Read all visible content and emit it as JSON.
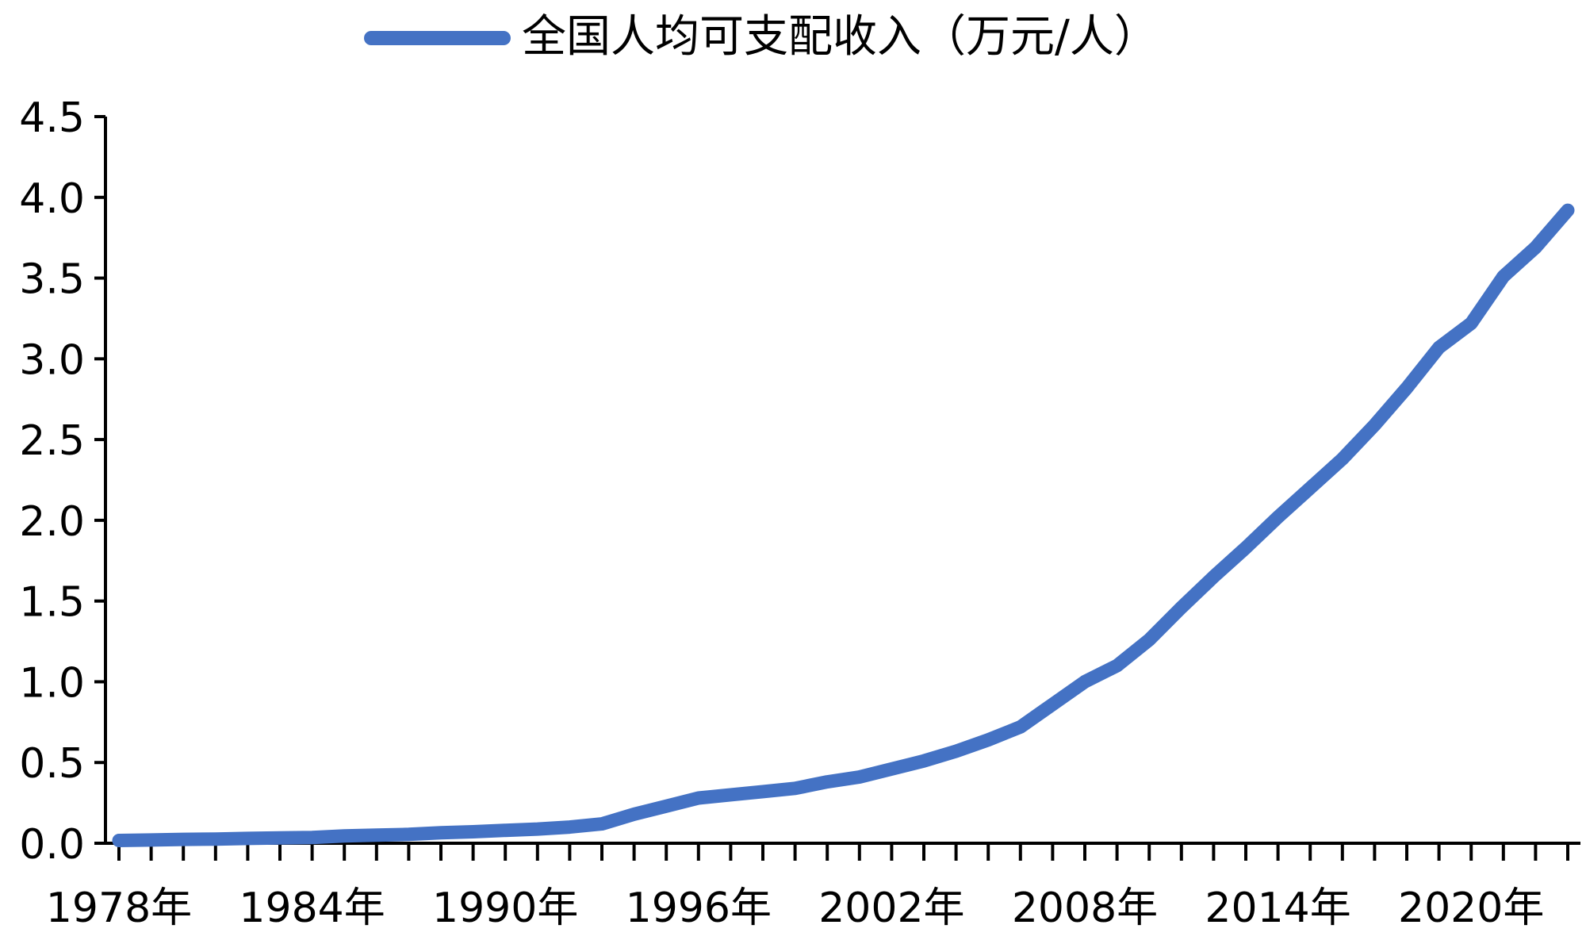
{
  "colors": {
    "series": "#4472C4",
    "axis": "#000000"
  },
  "chart_data": {
    "type": "line",
    "title": "",
    "xlabel": "",
    "ylabel": "",
    "legend_position": "top-center",
    "grid": false,
    "ylim": [
      0,
      4.5
    ],
    "yticks": [
      "0.0",
      "0.5",
      "1.0",
      "1.5",
      "2.0",
      "2.5",
      "3.0",
      "3.5",
      "4.0",
      "4.5"
    ],
    "xlim": [
      1978,
      2023
    ],
    "x_tick_labels": [
      {
        "year": 1978,
        "label": "1978年"
      },
      {
        "year": 1984,
        "label": "1984年"
      },
      {
        "year": 1990,
        "label": "1990年"
      },
      {
        "year": 1996,
        "label": "1996年"
      },
      {
        "year": 2002,
        "label": "2002年"
      },
      {
        "year": 2008,
        "label": "2008年"
      },
      {
        "year": 2014,
        "label": "2014年"
      },
      {
        "year": 2020,
        "label": "2020年"
      }
    ],
    "x": [
      1978,
      1979,
      1980,
      1981,
      1982,
      1983,
      1984,
      1985,
      1986,
      1987,
      1988,
      1989,
      1990,
      1991,
      1992,
      1993,
      1994,
      1995,
      1996,
      1997,
      1998,
      1999,
      2000,
      2001,
      2002,
      2003,
      2004,
      2005,
      2006,
      2007,
      2008,
      2009,
      2010,
      2011,
      2012,
      2013,
      2014,
      2015,
      2016,
      2017,
      2018,
      2019,
      2020,
      2021,
      2022,
      2023
    ],
    "series": [
      {
        "name": "全国人均可支配收入（万元/人）",
        "values": [
          0.017,
          0.02,
          0.024,
          0.026,
          0.03,
          0.033,
          0.036,
          0.045,
          0.05,
          0.055,
          0.065,
          0.071,
          0.08,
          0.088,
          0.1,
          0.12,
          0.18,
          0.23,
          0.28,
          0.3,
          0.32,
          0.34,
          0.38,
          0.41,
          0.46,
          0.51,
          0.57,
          0.64,
          0.72,
          0.86,
          1.0,
          1.1,
          1.26,
          1.46,
          1.65,
          1.83,
          2.02,
          2.2,
          2.38,
          2.59,
          2.82,
          3.07,
          3.22,
          3.51,
          3.69,
          3.92
        ]
      }
    ]
  }
}
